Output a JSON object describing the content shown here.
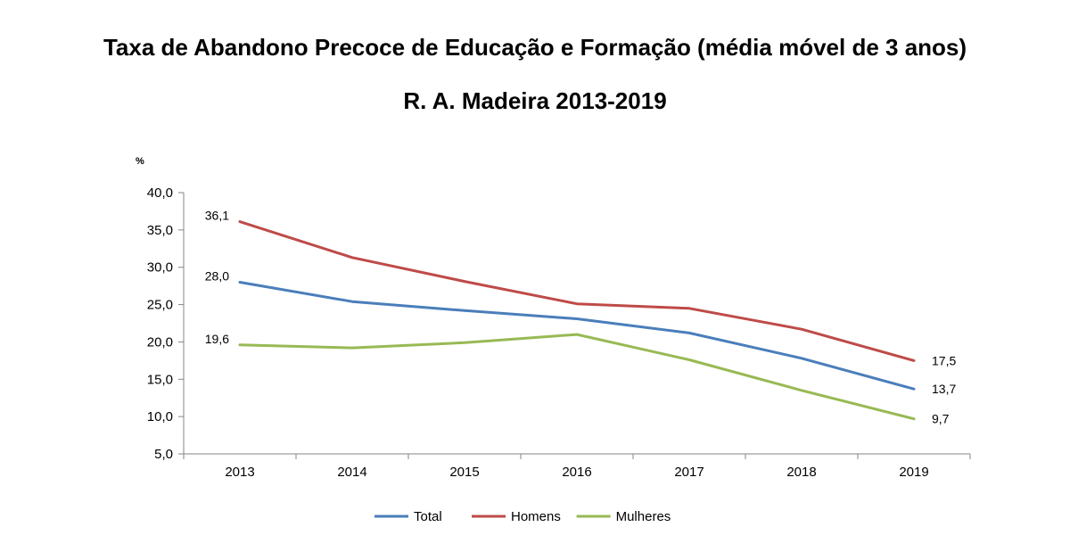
{
  "chart_data": {
    "type": "line",
    "title": "Taxa de Abandono Precoce de Educação e Formação (média móvel de 3 anos)",
    "subtitle": "R. A. Madeira 2013-2019",
    "ylabel": "%",
    "xlabel": "",
    "categories": [
      "2013",
      "2014",
      "2015",
      "2016",
      "2017",
      "2018",
      "2019"
    ],
    "ylim": [
      5,
      40
    ],
    "yticks": [
      "5,0",
      "10,0",
      "15,0",
      "20,0",
      "25,0",
      "30,0",
      "35,0",
      "40,0"
    ],
    "grid": false,
    "legend": "bottom",
    "series": [
      {
        "name": "Total",
        "color": "#4a7ebb",
        "values": [
          28.0,
          25.4,
          24.2,
          23.1,
          21.2,
          17.8,
          13.7
        ]
      },
      {
        "name": "Homens",
        "color": "#be4b48",
        "values": [
          36.1,
          31.3,
          28.1,
          25.1,
          24.5,
          21.7,
          17.5
        ]
      },
      {
        "name": "Mulheres",
        "color": "#98b954",
        "values": [
          19.6,
          19.2,
          19.9,
          21.0,
          17.6,
          13.5,
          9.7
        ]
      }
    ],
    "data_labels": [
      {
        "series": "Homens",
        "index": 0,
        "text": "36,1"
      },
      {
        "series": "Total",
        "index": 0,
        "text": "28,0"
      },
      {
        "series": "Mulheres",
        "index": 0,
        "text": "19,6"
      },
      {
        "series": "Homens",
        "index": 6,
        "text": "17,5"
      },
      {
        "series": "Total",
        "index": 6,
        "text": "13,7"
      },
      {
        "series": "Mulheres",
        "index": 6,
        "text": "9,7"
      }
    ]
  }
}
